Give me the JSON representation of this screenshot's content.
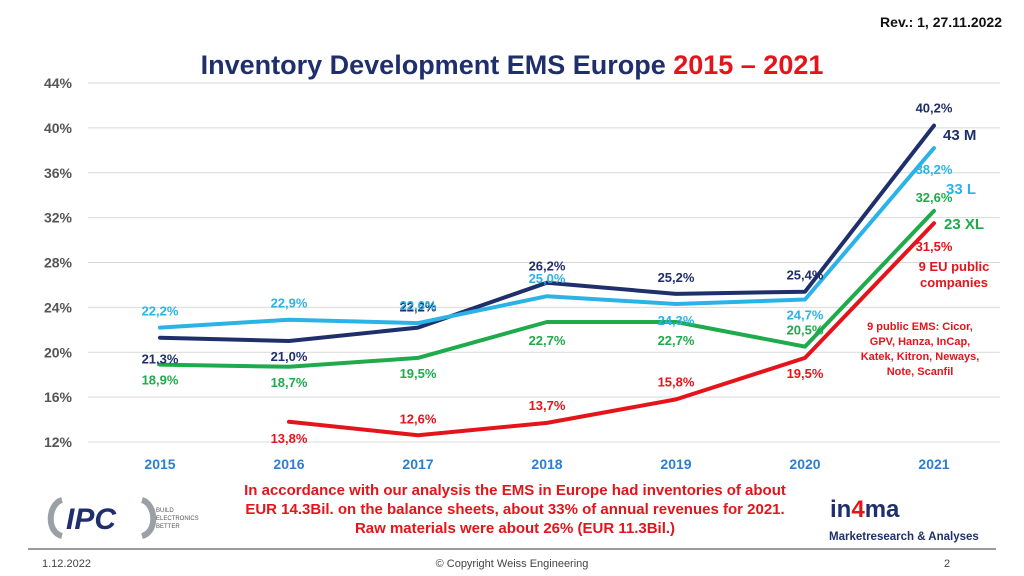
{
  "header": {
    "revision": "Rev.: 1, 27.11.2022",
    "title_main": "Inventory Development EMS Europe ",
    "title_years": "2015 – 2021"
  },
  "chart_data": {
    "type": "line",
    "x": [
      "2015",
      "2016",
      "2017",
      "2018",
      "2019",
      "2020",
      "2021"
    ],
    "ylim": [
      12,
      44
    ],
    "y_ticks": [
      "12%",
      "16%",
      "20%",
      "24%",
      "28%",
      "32%",
      "36%",
      "40%",
      "44%"
    ],
    "grid": true,
    "series": [
      {
        "name": "43 M",
        "color": "#1f2f6b",
        "values": [
          21.3,
          21.0,
          22.2,
          26.2,
          25.2,
          25.4,
          40.2
        ],
        "labels": [
          "21,3%",
          "21,0%",
          "22,2%",
          "26,2%",
          "25,2%",
          "25,4%",
          "40,2%"
        ]
      },
      {
        "name": "33 L",
        "color": "#2bb3e8",
        "values": [
          22.2,
          22.9,
          22.6,
          25.0,
          24.3,
          24.7,
          38.2
        ],
        "labels": [
          "22,2%",
          "22,9%",
          "22,6%",
          "25,0%",
          "24,3%",
          "24,7%",
          "38,2%"
        ]
      },
      {
        "name": "23 XL",
        "color": "#1faa4b",
        "values": [
          18.9,
          18.7,
          19.5,
          22.7,
          22.7,
          20.5,
          32.6
        ],
        "labels": [
          "18,9%",
          "18,7%",
          "19,5%",
          "22,7%",
          "22,7%",
          "20,5%",
          "32,6%"
        ]
      },
      {
        "name": "9 EU public companies",
        "color": "#e4141b",
        "values": [
          null,
          13.8,
          12.6,
          13.7,
          15.8,
          19.5,
          31.5
        ],
        "labels": [
          "",
          "13,8%",
          "12,6%",
          "13,7%",
          "15,8%",
          "19,5%",
          "31,5%"
        ]
      }
    ],
    "annotations": {
      "public_ems_line1": "9 public EMS: Cicor,",
      "public_ems_line2": "GPV, Hanza, InCap,",
      "public_ems_line3": "Katek, Kitron, Neways,",
      "public_ems_line4": "Note, Scanfil"
    }
  },
  "legend_labels": {
    "m": "43 M",
    "l": "33 L",
    "xl": "23 XL",
    "eu_line1": "9 EU public",
    "eu_line2": "companies"
  },
  "note": {
    "line1": "In accordance with our analysis the EMS in Europe had inventories of about",
    "line2": "EUR 14.3Bil. on the balance sheets, about 33% of annual revenues for 2021.",
    "line3": "Raw materials were about 26% (EUR 11.3Bil.)"
  },
  "logos": {
    "ipc_text": "IPC",
    "ipc_tag1": "BUILD",
    "ipc_tag2": "ELECTRONICS",
    "ipc_tag3": "BETTER",
    "in4ma_a": "in",
    "in4ma_b": "4",
    "in4ma_c": "ma",
    "in4ma_tagline": "Marketresearch & Analyses",
    "ipc_color": "#1f2f6b",
    "ipc_accent": "#9aa0a6"
  },
  "footer": {
    "date": "1.12.2022",
    "copyright": "© Copyright Weiss Engineering",
    "page": "2"
  }
}
